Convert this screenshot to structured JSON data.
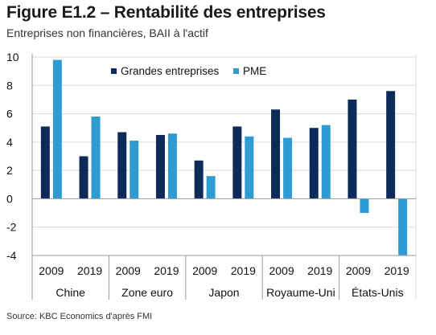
{
  "title": "Figure E1.2 – Rentabilité des entreprises",
  "subtitle": "Entreprises non financières, BAII à l'actif",
  "source": "Source: KBC Economics d'après FMI",
  "colors": {
    "series1": "#0d2b59",
    "series2": "#2f9bd3",
    "grid": "#d9d9d9",
    "sep": "#9a9a9a"
  },
  "chart_data": {
    "type": "bar",
    "categories": [
      "Chine 2009",
      "Chine 2019",
      "Zone euro 2009",
      "Zone euro 2019",
      "Japon 2009",
      "Japon 2019",
      "Royaume-Uni 2009",
      "Royaume-Uni 2019",
      "États-Unis 2009",
      "États-Unis 2019"
    ],
    "groups": [
      {
        "label": "Chine",
        "years": [
          "2009",
          "2019"
        ]
      },
      {
        "label": "Zone euro",
        "years": [
          "2009",
          "2019"
        ]
      },
      {
        "label": "Japon",
        "years": [
          "2009",
          "2019"
        ]
      },
      {
        "label": "Royaume-Uni",
        "years": [
          "2009",
          "2019"
        ]
      },
      {
        "label": "États-Unis",
        "years": [
          "2009",
          "2019"
        ]
      }
    ],
    "series": [
      {
        "name": "Grandes entreprises",
        "values": [
          5.1,
          3.0,
          4.7,
          4.5,
          2.7,
          5.1,
          6.3,
          5.0,
          7.0,
          7.6
        ]
      },
      {
        "name": "PME",
        "values": [
          9.8,
          5.8,
          4.1,
          4.6,
          1.6,
          4.4,
          4.3,
          5.2,
          -1.0,
          -4.0
        ]
      }
    ],
    "yticks": [
      "10",
      "8",
      "6",
      "4",
      "2",
      "0",
      "-2",
      "-4"
    ],
    "ylim": [
      -4,
      10
    ],
    "grid": true,
    "legend": "top-center"
  }
}
